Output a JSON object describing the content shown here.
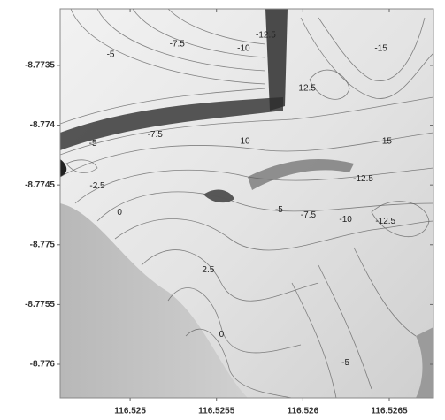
{
  "chart_data": {
    "type": "contour",
    "xlim": [
      116.524595,
      116.526756
    ],
    "ylim": [
      -8.776281,
      -8.773027
    ],
    "xticks": [
      116.525,
      116.5255,
      116.526,
      116.5265
    ],
    "yticks": [
      -8.7735,
      -8.774,
      -8.7745,
      -8.775,
      -8.7755,
      -8.776
    ],
    "contour_labels": [
      {
        "x": 116.524887,
        "y": -8.773412,
        "value": -5
      },
      {
        "x": 116.525272,
        "y": -8.773323,
        "value": -7.5
      },
      {
        "x": 116.525657,
        "y": -8.77336,
        "value": -10
      },
      {
        "x": 116.525785,
        "y": -8.773249,
        "value": -12.5
      },
      {
        "x": 116.526016,
        "y": -8.773693,
        "value": -12.5
      },
      {
        "x": 116.526452,
        "y": -8.77336,
        "value": -15
      },
      {
        "x": 116.524785,
        "y": -8.774152,
        "value": -5
      },
      {
        "x": 116.525144,
        "y": -8.774078,
        "value": -7.5
      },
      {
        "x": 116.525657,
        "y": -8.774137,
        "value": -10
      },
      {
        "x": 116.526478,
        "y": -8.774137,
        "value": -15
      },
      {
        "x": 116.52481,
        "y": -8.774507,
        "value": -2.5
      },
      {
        "x": 116.526349,
        "y": -8.774448,
        "value": -12.5
      },
      {
        "x": 116.524939,
        "y": -8.774729,
        "value": 0
      },
      {
        "x": 116.525862,
        "y": -8.774707,
        "value": -5
      },
      {
        "x": 116.526031,
        "y": -8.774751,
        "value": -7.5
      },
      {
        "x": 116.526247,
        "y": -8.774788,
        "value": -10
      },
      {
        "x": 116.526478,
        "y": -8.774803,
        "value": -12.5
      },
      {
        "x": 116.525452,
        "y": -8.77521,
        "value": 2.5
      },
      {
        "x": 116.525529,
        "y": -8.77575,
        "value": 0
      },
      {
        "x": 116.526247,
        "y": -8.775987,
        "value": -5
      }
    ]
  }
}
